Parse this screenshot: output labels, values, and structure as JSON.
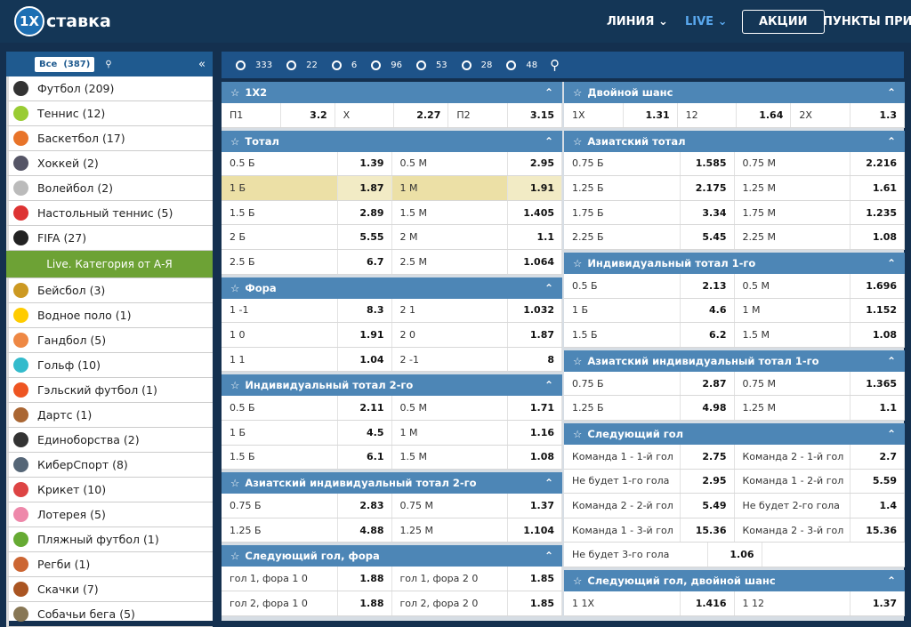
{
  "header": {
    "logo_mark": "1X",
    "logo_text": "ставка",
    "nav": [
      "ЛИНИЯ",
      "LIVE",
      "АКЦИИ",
      "ПУНКТЫ ПРИЕМ"
    ]
  },
  "sidebar": {
    "all_label": "Все",
    "all_count": "(387)",
    "top_sports": [
      "Футбол (209)",
      "Теннис (12)",
      "Баскетбол (17)",
      "Хоккей (2)",
      "Волейбол (2)",
      "Настольный теннис (5)",
      "FIFA (27)"
    ],
    "category_button": "Live. Категория от А-Я",
    "other_sports": [
      "Бейсбол (3)",
      "Водное поло (1)",
      "Гандбол (5)",
      "Гольф (10)",
      "Гэльский футбол (1)",
      "Дартс (1)",
      "Единоборства (2)",
      "КиберСпорт (8)",
      "Крикет (10)",
      "Лотерея (5)",
      "Пляжный футбол (1)",
      "Регби (1)",
      "Скачки (7)",
      "Собачьи бега (5)"
    ]
  },
  "toolbar": {
    "counts": [
      "333",
      "22",
      "6",
      "96",
      "53",
      "28",
      "48"
    ]
  },
  "markets": {
    "left": [
      {
        "title": "1X2",
        "rows": [
          [
            "П1",
            "3.2",
            "X",
            "2.27",
            "П2",
            "3.15"
          ]
        ]
      },
      {
        "title": "Тотал",
        "rows": [
          [
            "0.5 Б",
            "1.39",
            "0.5 М",
            "2.95"
          ],
          [
            "1 Б",
            "1.87",
            "1 М",
            "1.91"
          ],
          [
            "1.5 Б",
            "2.89",
            "1.5 М",
            "1.405"
          ],
          [
            "2 Б",
            "5.55",
            "2 М",
            "1.1"
          ],
          [
            "2.5 Б",
            "6.7",
            "2.5 М",
            "1.064"
          ]
        ]
      },
      {
        "title": "Фора",
        "rows": [
          [
            "1 -1",
            "8.3",
            "2 1",
            "1.032"
          ],
          [
            "1 0",
            "1.91",
            "2 0",
            "1.87"
          ],
          [
            "1 1",
            "1.04",
            "2 -1",
            "8"
          ]
        ]
      },
      {
        "title": "Индивидуальный тотал 2-го",
        "rows": [
          [
            "0.5 Б",
            "2.11",
            "0.5 М",
            "1.71"
          ],
          [
            "1 Б",
            "4.5",
            "1 М",
            "1.16"
          ],
          [
            "1.5 Б",
            "6.1",
            "1.5 М",
            "1.08"
          ]
        ]
      },
      {
        "title": "Азиатский индивидуальный тотал 2-го",
        "rows": [
          [
            "0.75 Б",
            "2.83",
            "0.75 М",
            "1.37"
          ],
          [
            "1.25 Б",
            "4.88",
            "1.25 М",
            "1.104"
          ]
        ]
      },
      {
        "title": "Следующий гол, фора",
        "rows": [
          [
            "гол 1, фора 1 0",
            "1.88",
            "гол 1, фора 2 0",
            "1.85"
          ],
          [
            "гол 2, фора 1 0",
            "1.88",
            "гол 2, фора 2 0",
            "1.85"
          ]
        ]
      }
    ],
    "right": [
      {
        "title": "Двойной шанс",
        "rows": [
          [
            "1X",
            "1.31",
            "12",
            "1.64",
            "2X",
            "1.3"
          ]
        ]
      },
      {
        "title": "Азиатский тотал",
        "rows": [
          [
            "0.75 Б",
            "1.585",
            "0.75 М",
            "2.216"
          ],
          [
            "1.25 Б",
            "2.175",
            "1.25 М",
            "1.61"
          ],
          [
            "1.75 Б",
            "3.34",
            "1.75 М",
            "1.235"
          ],
          [
            "2.25 Б",
            "5.45",
            "2.25 М",
            "1.08"
          ]
        ]
      },
      {
        "title": "Индивидуальный тотал 1-го",
        "rows": [
          [
            "0.5 Б",
            "2.13",
            "0.5 М",
            "1.696"
          ],
          [
            "1 Б",
            "4.6",
            "1 М",
            "1.152"
          ],
          [
            "1.5 Б",
            "6.2",
            "1.5 М",
            "1.08"
          ]
        ]
      },
      {
        "title": "Азиатский индивидуальный тотал 1-го",
        "rows": [
          [
            "0.75 Б",
            "2.87",
            "0.75 М",
            "1.365"
          ],
          [
            "1.25 Б",
            "4.98",
            "1.25 М",
            "1.1"
          ]
        ]
      },
      {
        "title": "Следующий гол",
        "rows": [
          [
            "Команда 1 - 1-й гол",
            "2.75",
            "Команда 2 - 1-й гол",
            "2.7"
          ],
          [
            "Не будет 1-го гола",
            "2.95",
            "Команда 1 - 2-й гол",
            "5.59"
          ],
          [
            "Команда 2 - 2-й гол",
            "5.49",
            "Не будет 2-го гола",
            "1.4"
          ],
          [
            "Команда 1 - 3-й гол",
            "15.36",
            "Команда 2 - 3-й гол",
            "15.36"
          ],
          [
            "Не будет 3-го гола",
            "1.06"
          ]
        ]
      },
      {
        "title": "Следующий гол, двойной шанс",
        "rows": [
          [
            "1 1X",
            "1.416",
            "1 12",
            "1.37"
          ]
        ]
      }
    ]
  }
}
